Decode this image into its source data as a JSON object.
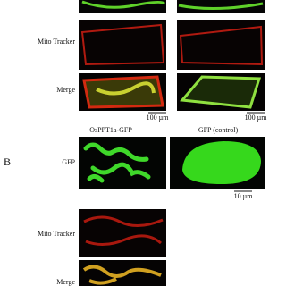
{
  "panel_a": {
    "row_labels": [
      "Mito Tracker",
      "Merge"
    ],
    "scale_bars": [
      "100 µm",
      "100 µm"
    ]
  },
  "panel_b": {
    "label": "B",
    "column_headers": [
      "OsPPT1a-GFP",
      "GFP (control)"
    ],
    "row_labels": [
      "GFP",
      "Mito Tracker",
      "Merge"
    ],
    "scale_bar": "10 µm"
  }
}
